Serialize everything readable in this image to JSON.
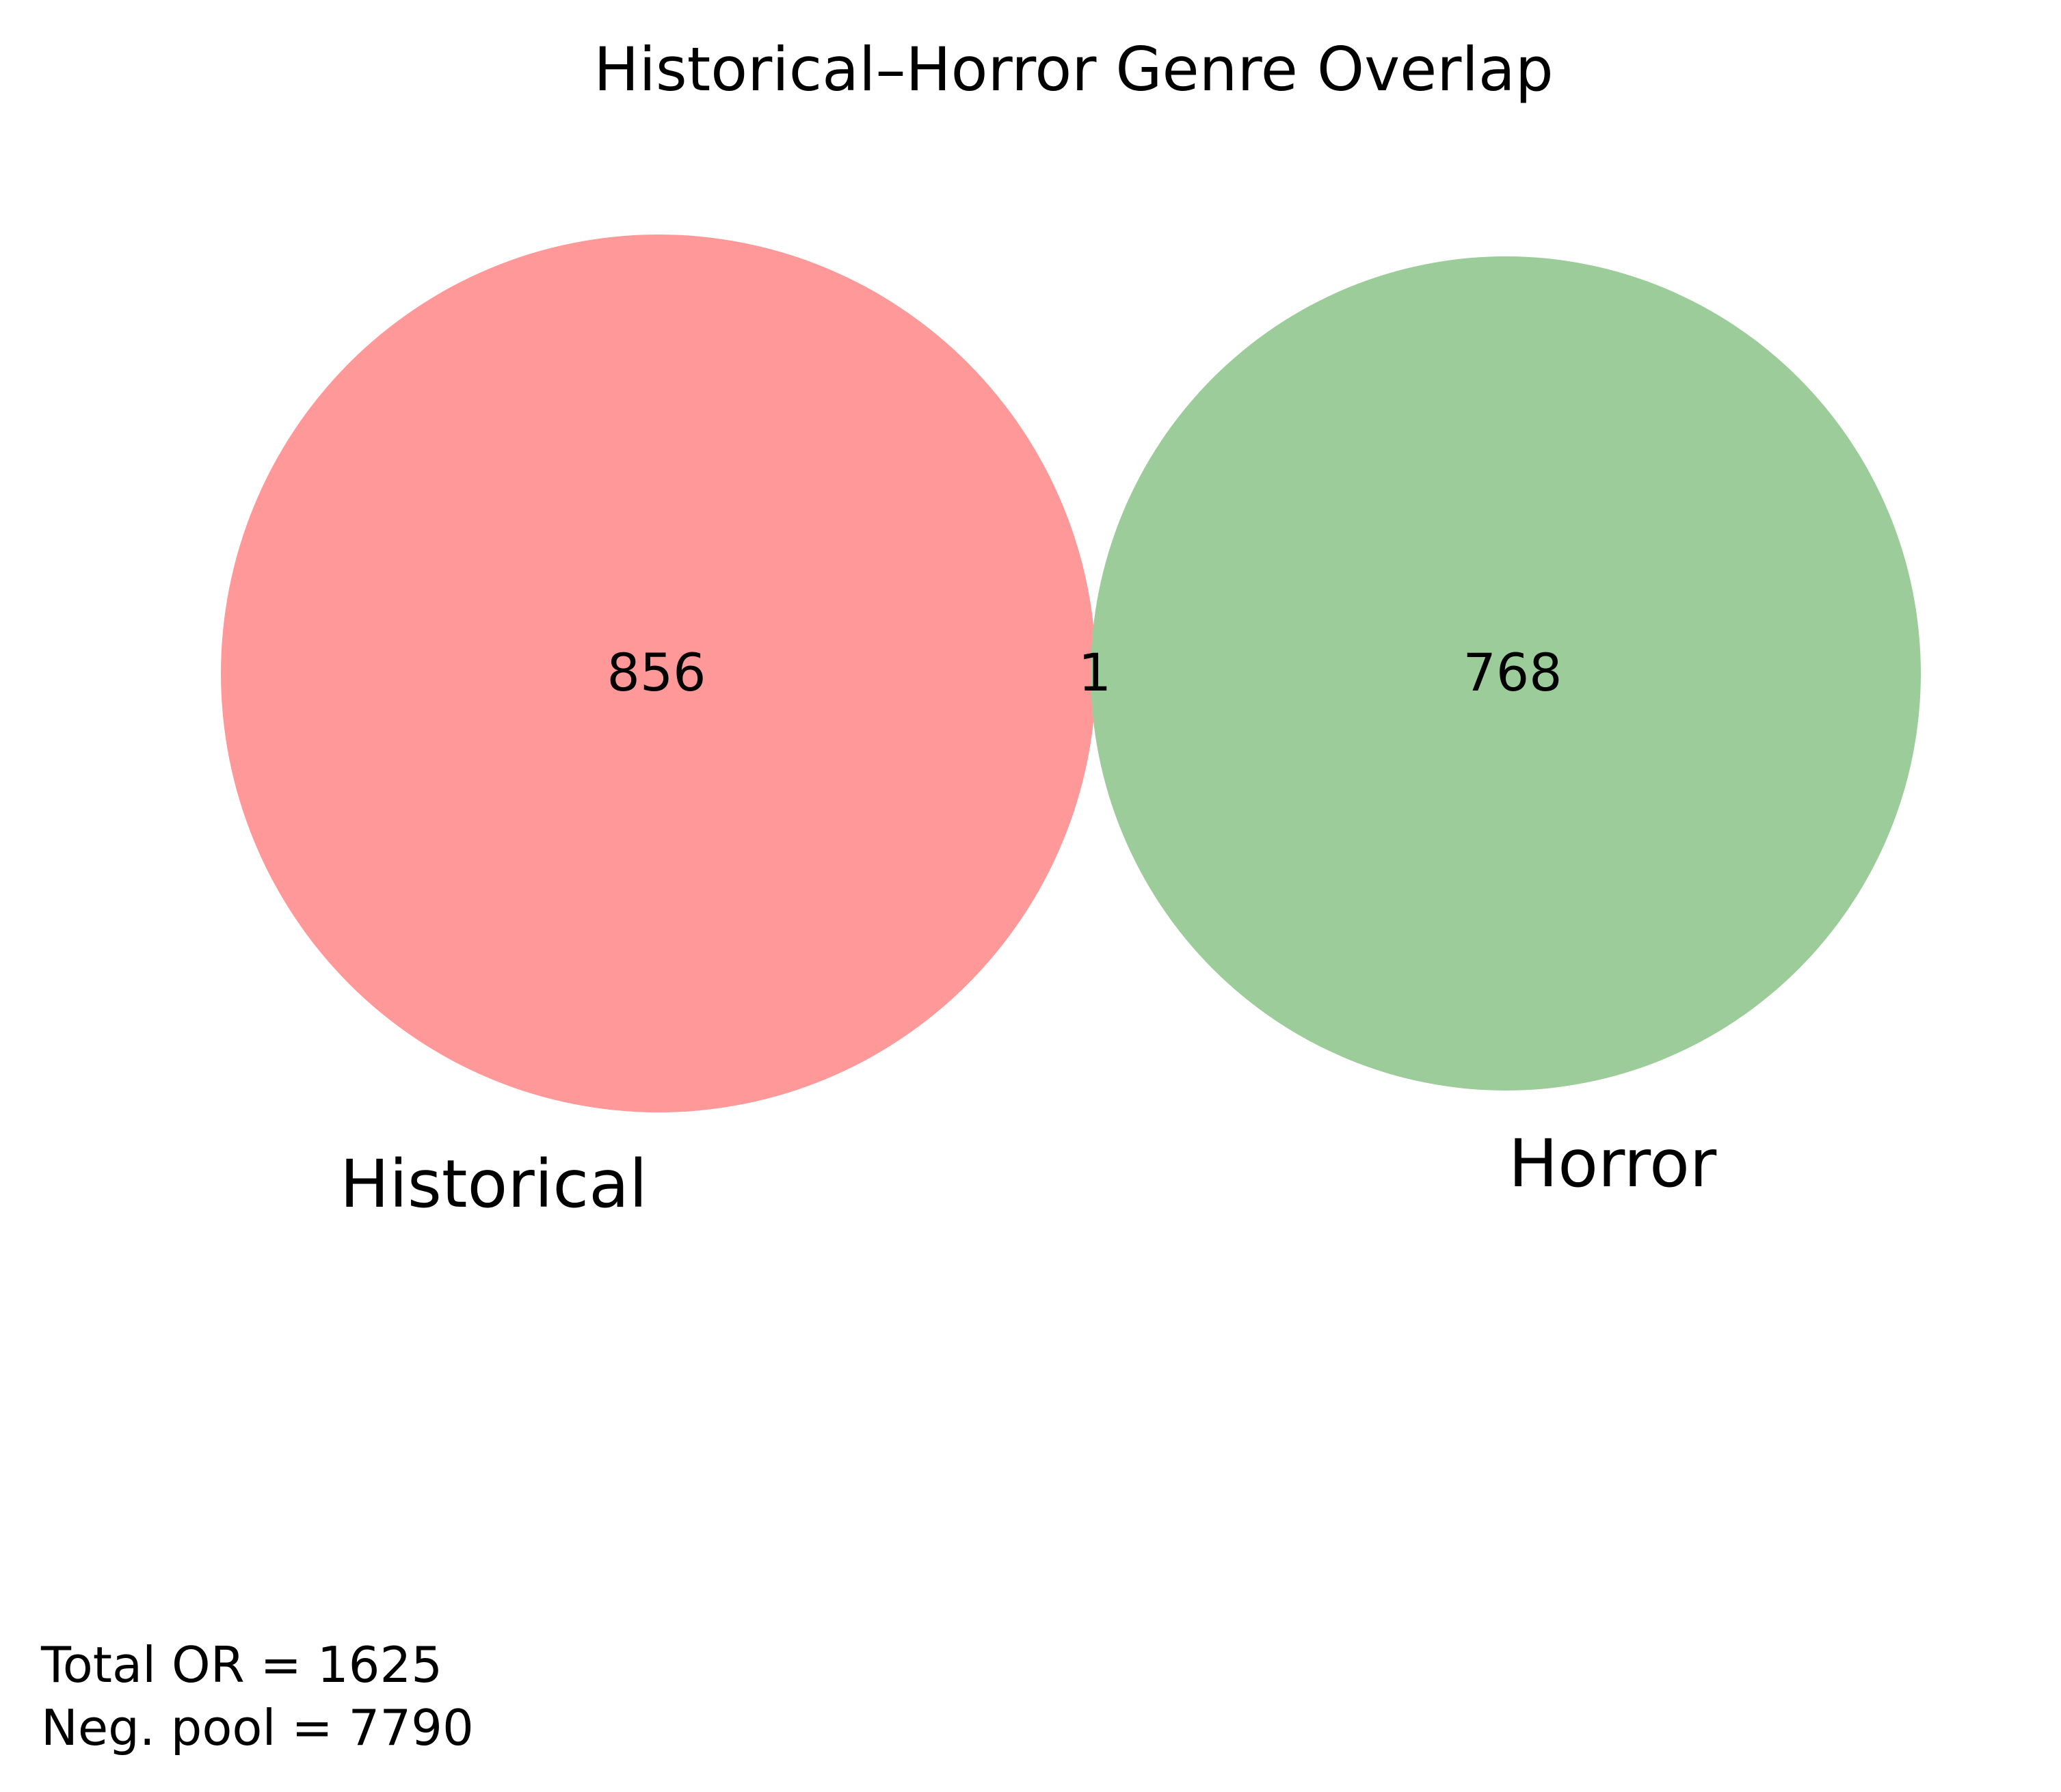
{
  "title": "Historical–Horror Genre Overlap",
  "sets": [
    {
      "name": "Historical",
      "only_count": "856",
      "color": "#ff9999"
    },
    {
      "name": "Horror",
      "only_count": "768",
      "color": "#9ccc99"
    }
  ],
  "intersection_count": "1",
  "footer": {
    "total_line": "Total OR = 1625",
    "pool_line": "Neg. pool = 7790"
  }
}
